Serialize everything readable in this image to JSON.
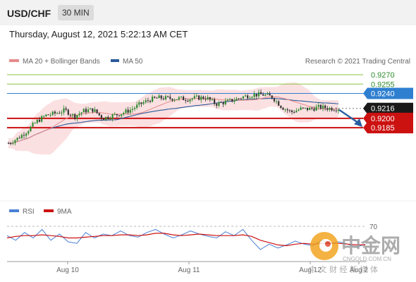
{
  "header": {
    "pair": "USD/CHF",
    "timeframe": "30 MIN",
    "datetime": "Thursday, August 12, 2021 5:22:13 AM CET"
  },
  "legend": {
    "ma20_label": "MA 20 + Bollinger Bands",
    "ma50_label": "MA 50",
    "credit": "Research © 2021 Trading Central"
  },
  "colors": {
    "ma20": "#e05a5a",
    "ma50": "#2a5a9a",
    "band_fill": "#f9d5d8",
    "up_candle": "#2e8b2e",
    "down_candle": "#333333",
    "target_line": "#8cc63f",
    "pivot_line": "#2f7fd0",
    "support_line": "#cc1111",
    "current_bg": "#1a1a1a",
    "arrow": "#2a5d9f",
    "rsi_line": "#4a7fd4",
    "rsi_ma": "#cc1111"
  },
  "rsi_legend": {
    "rsi_label": "RSI",
    "ma_label": "9MA"
  },
  "watermark": {
    "brand": "中金网",
    "url": "CNGOLD.COM.CN",
    "tagline": "中 文 财 经 新 媒 体"
  },
  "chart_data": [
    {
      "type": "candlestick",
      "title": "",
      "price_levels": [
        {
          "value": 0.927,
          "label": "0.9270",
          "kind": "target"
        },
        {
          "value": 0.9255,
          "label": "0.9255",
          "kind": "target"
        },
        {
          "value": 0.924,
          "label": "0.9240",
          "kind": "pivot"
        },
        {
          "value": 0.9216,
          "label": "0.9216",
          "kind": "current"
        },
        {
          "value": 0.92,
          "label": "0.9200",
          "kind": "support"
        },
        {
          "value": 0.9185,
          "label": "0.9185",
          "kind": "support"
        }
      ],
      "x_ticks": [
        "Aug 10",
        "Aug 11",
        "Aug 12",
        "Aug 2"
      ],
      "close_path": [
        0.916,
        0.9168,
        0.918,
        0.9195,
        0.9205,
        0.9208,
        0.9213,
        0.9203,
        0.9212,
        0.9214,
        0.92,
        0.9204,
        0.9208,
        0.9214,
        0.9223,
        0.923,
        0.9233,
        0.9232,
        0.9232,
        0.9231,
        0.9233,
        0.9233,
        0.9223,
        0.9226,
        0.923,
        0.9235,
        0.9238,
        0.9238,
        0.9234,
        0.9218,
        0.921,
        0.9215,
        0.9215,
        0.9218,
        0.9216,
        0.9216
      ],
      "projection": {
        "from": 0.9216,
        "to": 0.9185
      }
    },
    {
      "type": "line",
      "title": "RSI",
      "y_ticks": [
        70
      ],
      "series": [
        {
          "name": "RSI",
          "values": [
            58,
            52,
            62,
            55,
            66,
            52,
            60,
            50,
            48,
            62,
            55,
            60,
            58,
            64,
            58,
            56,
            62,
            66,
            60,
            55,
            59,
            64,
            60,
            57,
            55,
            63,
            58,
            66,
            52,
            40,
            47,
            42,
            46,
            51,
            47,
            45,
            52,
            48,
            50,
            47,
            43,
            47
          ]
        },
        {
          "name": "9MA",
          "values": [
            55,
            57,
            58,
            58,
            59,
            58,
            57,
            55,
            55,
            56,
            57,
            58,
            58,
            59,
            59,
            58,
            59,
            61,
            61,
            59,
            58,
            59,
            60,
            59,
            58,
            58,
            58,
            59,
            57,
            52,
            49,
            46,
            45,
            47,
            48,
            47,
            48,
            48,
            48,
            47,
            46,
            46
          ]
        }
      ]
    }
  ]
}
